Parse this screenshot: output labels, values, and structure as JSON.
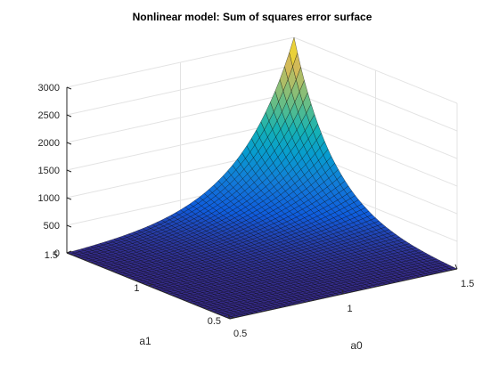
{
  "chart_data": {
    "type": "surface",
    "title": "Nonlinear model: Sum of squares error surface",
    "xlabel": "a0",
    "ylabel": "a1",
    "zlabel": "",
    "x_range": [
      0.5,
      1.5
    ],
    "y_range": [
      0.5,
      1.5
    ],
    "z_range": [
      0,
      3000
    ],
    "x_ticks": [
      0.5,
      1,
      1.5
    ],
    "y_ticks": [
      0.5,
      1,
      1.5
    ],
    "z_ticks": [
      0,
      500,
      1000,
      1500,
      2000,
      2500,
      3000
    ],
    "x_tick_labels": [
      "0.5",
      "1",
      "1.5"
    ],
    "y_tick_labels": [
      "0.5",
      "1",
      "1.5"
    ],
    "z_tick_labels": [
      "0",
      "500",
      "1000",
      "1500",
      "2000",
      "2500",
      "3000"
    ],
    "grid": true,
    "colormap": "parula",
    "edge_color": "#000000",
    "z_max": 3000,
    "corner_values": [
      {
        "a0": 0.5,
        "a1": 0.5,
        "sse": 0
      },
      {
        "a0": 1.5,
        "a1": 0.5,
        "sse": 0
      },
      {
        "a0": 0.5,
        "a1": 1.5,
        "sse": 0
      },
      {
        "a0": 1.5,
        "a1": 1.5,
        "sse": 3000
      }
    ]
  }
}
